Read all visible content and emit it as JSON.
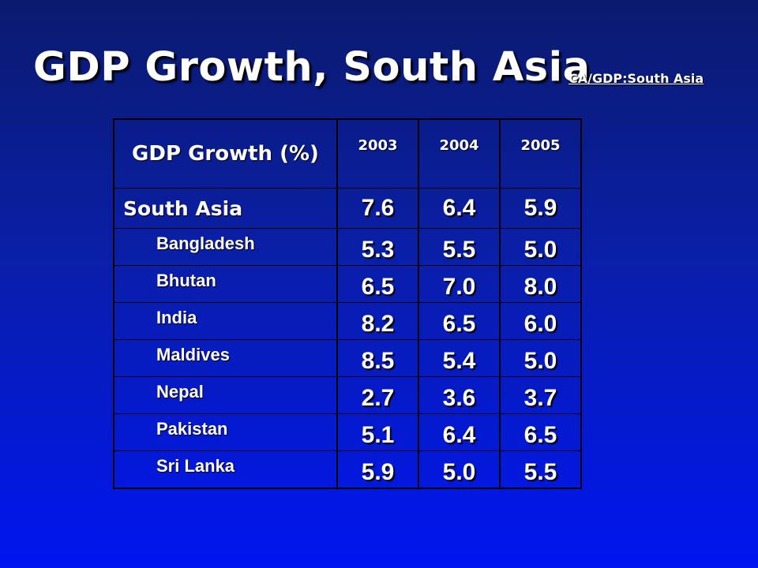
{
  "title": "GDP Growth, South Asia",
  "link_text": "CA/GDP:South Asia",
  "table": {
    "header_label": "GDP Growth (%)",
    "years": [
      "2003",
      "2004",
      "2005"
    ],
    "region": {
      "name": "South Asia",
      "values": [
        "7.6",
        "6.4",
        "5.9"
      ]
    },
    "countries": [
      {
        "name": "Bangladesh",
        "values": [
          "5.3",
          "5.5",
          "5.0"
        ]
      },
      {
        "name": "Bhutan",
        "values": [
          "6.5",
          "7.0",
          "8.0"
        ]
      },
      {
        "name": "India",
        "values": [
          "8.2",
          "6.5",
          "6.0"
        ]
      },
      {
        "name": "Maldives",
        "values": [
          "8.5",
          "5.4",
          "5.0"
        ]
      },
      {
        "name": "Nepal",
        "values": [
          "2.7",
          "3.6",
          "3.7"
        ]
      },
      {
        "name": "Pakistan",
        "values": [
          "5.1",
          "6.4",
          "6.5"
        ]
      },
      {
        "name": "Sri Lanka",
        "values": [
          "5.9",
          "5.0",
          "5.5"
        ]
      }
    ]
  }
}
